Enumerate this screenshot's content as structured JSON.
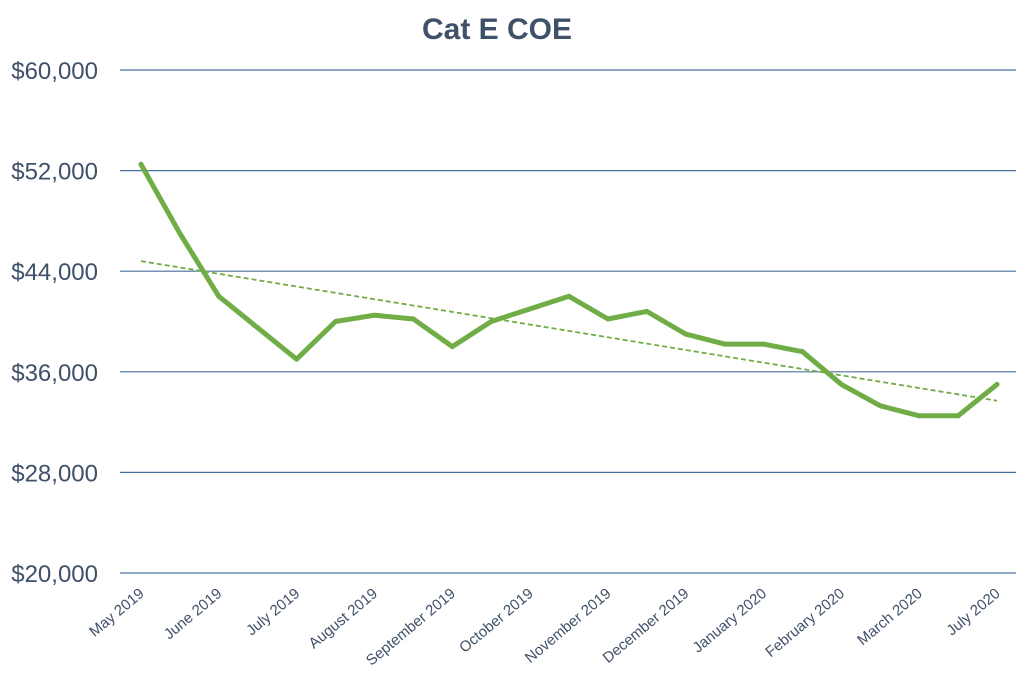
{
  "chart_data": {
    "type": "line",
    "title": "Cat E COE",
    "xlabel": "",
    "ylabel": "",
    "ylim": [
      20000,
      60000
    ],
    "yticks": [
      20000,
      28000,
      36000,
      44000,
      52000,
      60000
    ],
    "ytick_labels": [
      "$20,000",
      "$28,000",
      "$36,000",
      "$44,000",
      "$52,000",
      "$60,000"
    ],
    "xtick_labels": [
      "May 2019",
      "June 2019",
      "July 2019",
      "August 2019",
      "September 2019",
      "October 2019",
      "November 2019",
      "December 2019",
      "January 2020",
      "February 2020",
      "March 2020",
      "July 2020"
    ],
    "x": [
      "May 2019",
      "",
      "June 2019",
      "",
      "July 2019",
      "",
      "August 2019",
      "",
      "September 2019",
      "",
      "October 2019",
      "",
      "November 2019",
      "",
      "December 2019",
      "",
      "January 2020",
      "",
      "February 2020",
      "",
      "March 2020",
      "",
      "July 2020"
    ],
    "series": [
      {
        "color": "#70ad47",
        "values": [
          52500,
          47000,
          42000,
          39500,
          37000,
          40000,
          40500,
          40200,
          38000,
          40000,
          41000,
          42000,
          40200,
          40800,
          39000,
          38200,
          38200,
          37600,
          35000,
          33300,
          32500,
          32500,
          35000
        ]
      }
    ],
    "trendline": {
      "style": "dashed",
      "color": "#70ad47",
      "start": 44800,
      "end": 33700
    },
    "grid": true,
    "grid_color": "#4a6fa0",
    "legend": "none"
  }
}
